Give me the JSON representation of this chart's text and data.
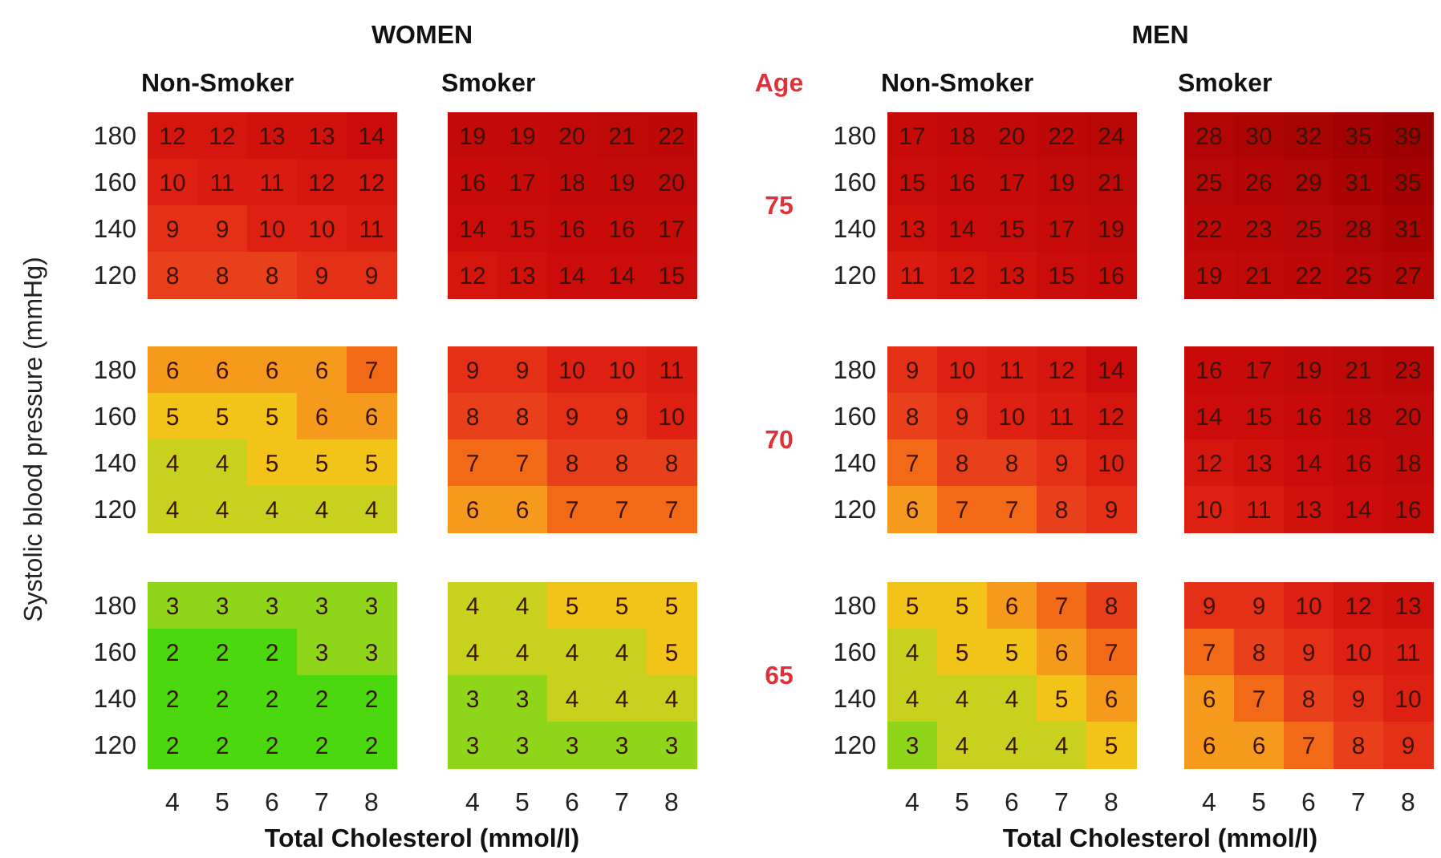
{
  "chart_data": [
    {
      "type": "heatmap",
      "title": "Non-Smoker",
      "annotations": [
        "WOMEN"
      ],
      "categories": [
        "4",
        "5",
        "6",
        "7",
        "8"
      ],
      "y_categories": [
        "180",
        "160",
        "140",
        "120"
      ],
      "cells": [
        [
          12,
          12,
          13,
          13,
          14
        ],
        [
          10,
          11,
          11,
          12,
          12
        ],
        [
          9,
          9,
          10,
          10,
          11
        ],
        [
          8,
          8,
          8,
          9,
          9
        ]
      ],
      "data_labels": true,
      "tick_labels": "y"
    },
    {
      "type": "heatmap",
      "title": "Smoker",
      "annotations": [
        "Age",
        "75"
      ],
      "categories": [
        "4",
        "5",
        "6",
        "7",
        "8"
      ],
      "y_categories": [
        "180",
        "160",
        "140",
        "120"
      ],
      "cells": [
        [
          19,
          19,
          20,
          21,
          22
        ],
        [
          16,
          17,
          18,
          19,
          20
        ],
        [
          14,
          15,
          16,
          16,
          17
        ],
        [
          12,
          13,
          14,
          14,
          15
        ]
      ],
      "data_labels": true,
      "tick_labels": false
    },
    {
      "type": "heatmap",
      "title": "Non-Smoker",
      "annotations": [
        "MEN"
      ],
      "categories": [
        "4",
        "5",
        "6",
        "7",
        "8"
      ],
      "y_categories": [
        "180",
        "160",
        "140",
        "120"
      ],
      "cells": [
        [
          17,
          18,
          20,
          22,
          24
        ],
        [
          15,
          16,
          17,
          19,
          21
        ],
        [
          13,
          14,
          15,
          17,
          19
        ],
        [
          11,
          12,
          13,
          15,
          16
        ]
      ],
      "data_labels": true,
      "tick_labels": "y"
    },
    {
      "type": "heatmap",
      "title": "Smoker",
      "categories": [
        "4",
        "5",
        "6",
        "7",
        "8"
      ],
      "y_categories": [
        "180",
        "160",
        "140",
        "120"
      ],
      "cells": [
        [
          28,
          30,
          32,
          35,
          39
        ],
        [
          25,
          26,
          29,
          31,
          35
        ],
        [
          22,
          23,
          25,
          28,
          31
        ],
        [
          19,
          21,
          22,
          25,
          27
        ]
      ],
      "data_labels": true,
      "tick_labels": false
    },
    {
      "type": "heatmap",
      "ylabel": "Systolic blood pressure (mmHg)",
      "categories": [
        "4",
        "5",
        "6",
        "7",
        "8"
      ],
      "y_categories": [
        "180",
        "160",
        "140",
        "120"
      ],
      "cells": [
        [
          6,
          6,
          6,
          6,
          7
        ],
        [
          5,
          5,
          5,
          6,
          6
        ],
        [
          4,
          4,
          5,
          5,
          5
        ],
        [
          4,
          4,
          4,
          4,
          4
        ]
      ],
      "data_labels": true,
      "tick_labels": "y"
    },
    {
      "type": "heatmap",
      "annotations": [
        "70"
      ],
      "categories": [
        "4",
        "5",
        "6",
        "7",
        "8"
      ],
      "y_categories": [
        "180",
        "160",
        "140",
        "120"
      ],
      "cells": [
        [
          9,
          9,
          10,
          10,
          11
        ],
        [
          8,
          8,
          9,
          9,
          10
        ],
        [
          7,
          7,
          8,
          8,
          8
        ],
        [
          6,
          6,
          7,
          7,
          7
        ]
      ],
      "data_labels": true,
      "tick_labels": false
    },
    {
      "type": "heatmap",
      "categories": [
        "4",
        "5",
        "6",
        "7",
        "8"
      ],
      "y_categories": [
        "180",
        "160",
        "140",
        "120"
      ],
      "cells": [
        [
          9,
          10,
          11,
          12,
          14
        ],
        [
          8,
          9,
          10,
          11,
          12
        ],
        [
          7,
          8,
          8,
          9,
          10
        ],
        [
          6,
          7,
          7,
          8,
          9
        ]
      ],
      "data_labels": true,
      "tick_labels": "y"
    },
    {
      "type": "heatmap",
      "categories": [
        "4",
        "5",
        "6",
        "7",
        "8"
      ],
      "y_categories": [
        "180",
        "160",
        "140",
        "120"
      ],
      "cells": [
        [
          16,
          17,
          19,
          21,
          23
        ],
        [
          14,
          15,
          16,
          18,
          20
        ],
        [
          12,
          13,
          14,
          16,
          18
        ],
        [
          10,
          11,
          13,
          14,
          16
        ]
      ],
      "data_labels": true,
      "tick_labels": false
    },
    {
      "type": "heatmap",
      "xlabel": "Total Cholesterol (mmol/l)",
      "categories": [
        "4",
        "5",
        "6",
        "7",
        "8"
      ],
      "y_categories": [
        "180",
        "160",
        "140",
        "120"
      ],
      "cells": [
        [
          3,
          3,
          3,
          3,
          3
        ],
        [
          2,
          2,
          2,
          3,
          3
        ],
        [
          2,
          2,
          2,
          2,
          2
        ],
        [
          2,
          2,
          2,
          2,
          2
        ]
      ],
      "data_labels": true
    },
    {
      "type": "heatmap",
      "annotations": [
        "65"
      ],
      "categories": [
        "4",
        "5",
        "6",
        "7",
        "8"
      ],
      "y_categories": [
        "180",
        "160",
        "140",
        "120"
      ],
      "cells": [
        [
          4,
          4,
          5,
          5,
          5
        ],
        [
          4,
          4,
          4,
          4,
          5
        ],
        [
          3,
          3,
          4,
          4,
          4
        ],
        [
          3,
          3,
          3,
          3,
          3
        ]
      ],
      "data_labels": true,
      "tick_labels": "x"
    },
    {
      "type": "heatmap",
      "xlabel": "Total Cholesterol (mmol/l)",
      "categories": [
        "4",
        "5",
        "6",
        "7",
        "8"
      ],
      "y_categories": [
        "180",
        "160",
        "140",
        "120"
      ],
      "cells": [
        [
          5,
          5,
          6,
          7,
          8
        ],
        [
          4,
          5,
          5,
          6,
          7
        ],
        [
          4,
          4,
          4,
          5,
          6
        ],
        [
          3,
          4,
          4,
          4,
          5
        ]
      ],
      "data_labels": true
    },
    {
      "type": "heatmap",
      "categories": [
        "4",
        "5",
        "6",
        "7",
        "8"
      ],
      "y_categories": [
        "180",
        "160",
        "140",
        "120"
      ],
      "cells": [
        [
          9,
          9,
          10,
          12,
          13
        ],
        [
          7,
          8,
          9,
          10,
          11
        ],
        [
          6,
          7,
          8,
          9,
          10
        ],
        [
          6,
          6,
          7,
          8,
          9
        ]
      ],
      "data_labels": true,
      "tick_labels": "x"
    }
  ]
}
